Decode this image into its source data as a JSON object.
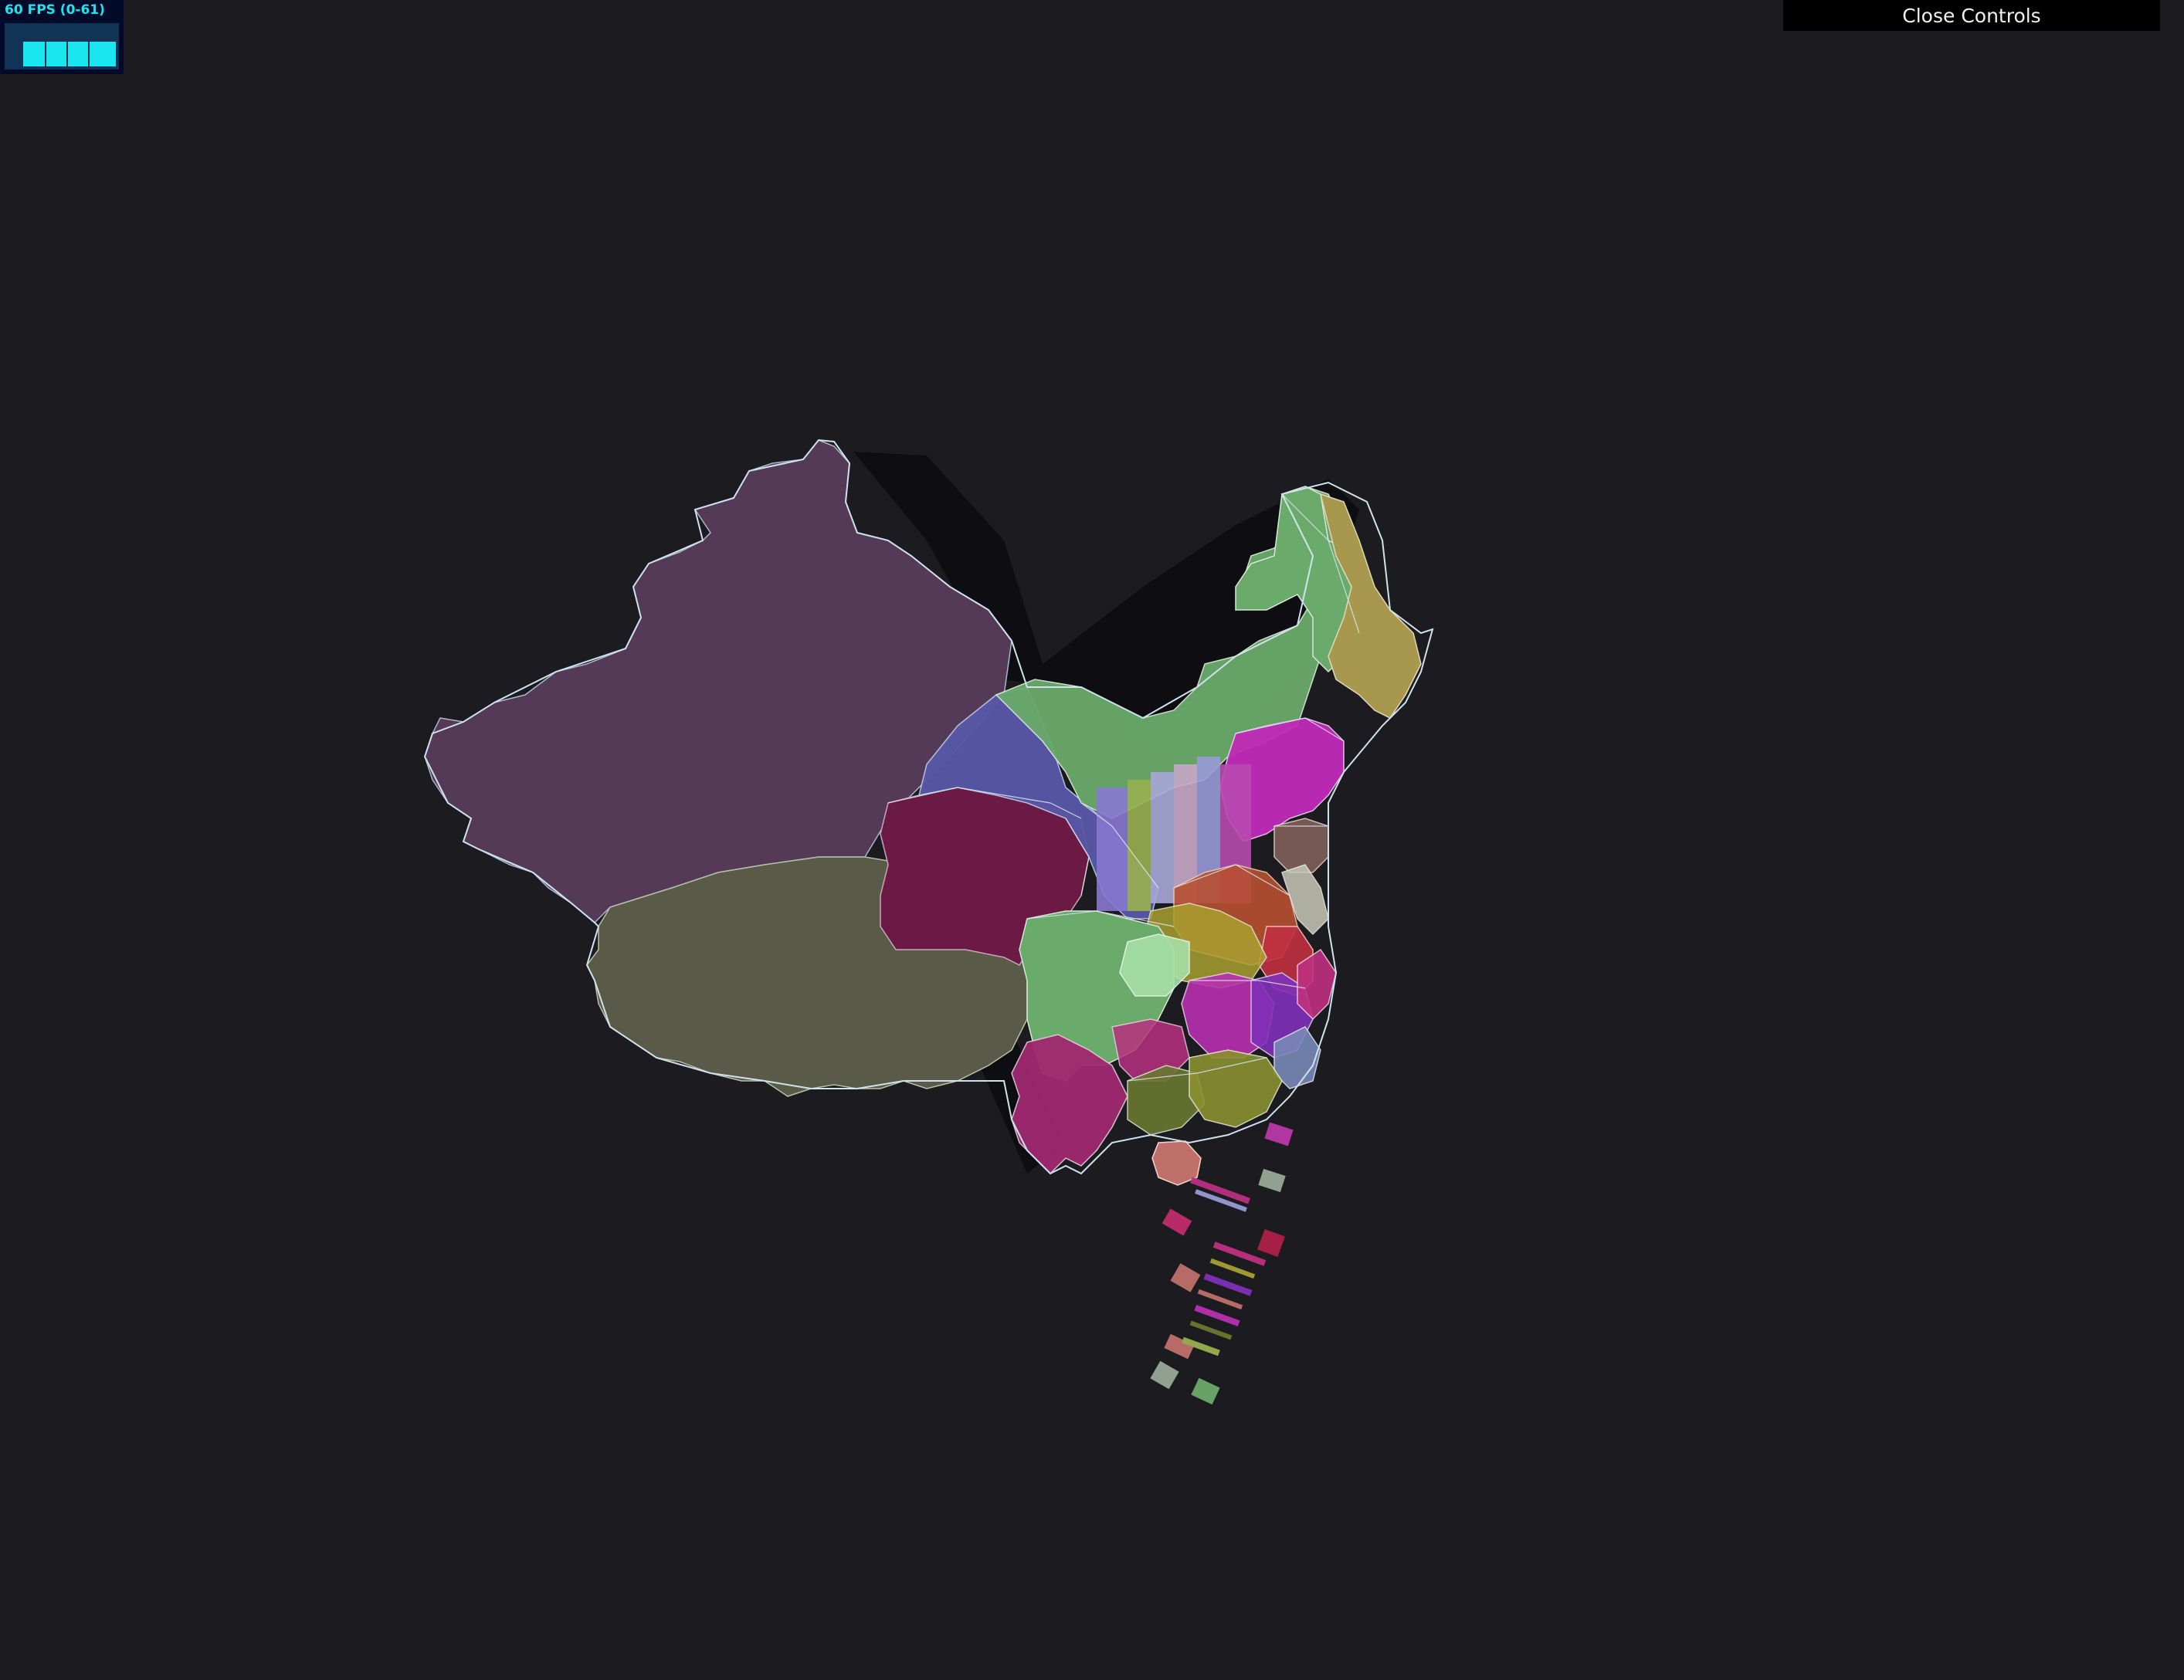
{
  "stats": {
    "label": "60 FPS (0-61)",
    "fps_fraction": 0.98
  },
  "controls": {
    "close_label": "Close Controls"
  },
  "colors": {
    "background": "#1c1b1f",
    "stats_text": "#19e6ee",
    "outline": "#cfe3ee"
  }
}
